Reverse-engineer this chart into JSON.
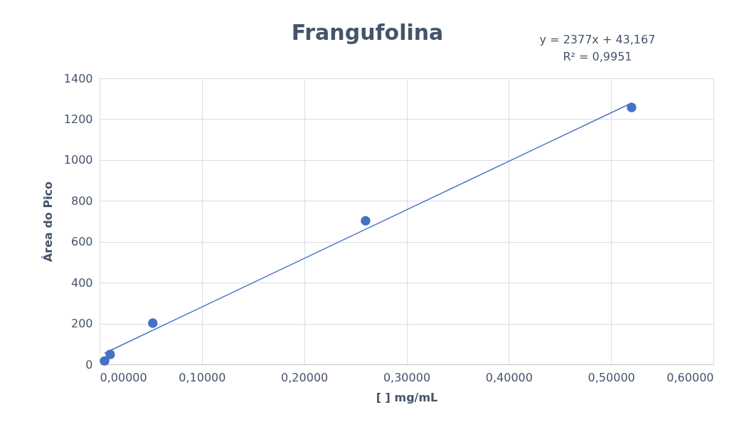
{
  "chart_data": {
    "type": "scatter",
    "title": "Frangufolina",
    "xlabel": "[ ] mg/mL",
    "ylabel": "Área do Pico",
    "annotations": [
      "y = 2377x + 43,167",
      "R² = 0,9951"
    ],
    "series": [
      {
        "color": "#4472c4",
        "x": [
          0.0049,
          0.0104,
          0.052,
          0.26,
          0.52
        ],
        "values": [
          17,
          49,
          202,
          703,
          1257
        ],
        "marker": "circle"
      },
      {
        "type": "line",
        "color": "#4472c4",
        "x": [
          0.0049,
          0.52
        ],
        "values": [
          55,
          1279
        ],
        "line_style": "solid"
      }
    ],
    "xlim": [
      0,
      0.6
    ],
    "xticks": [
      {
        "value": 0,
        "label": "0,00000"
      },
      {
        "value": 0.1,
        "label": "0,10000"
      },
      {
        "value": 0.2,
        "label": "0,20000"
      },
      {
        "value": 0.3,
        "label": "0,30000"
      },
      {
        "value": 0.4,
        "label": "0,40000"
      },
      {
        "value": 0.5,
        "label": "0,50000"
      },
      {
        "value": 0.6,
        "label": "0,60000"
      }
    ],
    "ylim": [
      0,
      1400
    ],
    "yticks": [
      0,
      200,
      400,
      600,
      800,
      1000,
      1200,
      1400
    ],
    "grid": true
  }
}
